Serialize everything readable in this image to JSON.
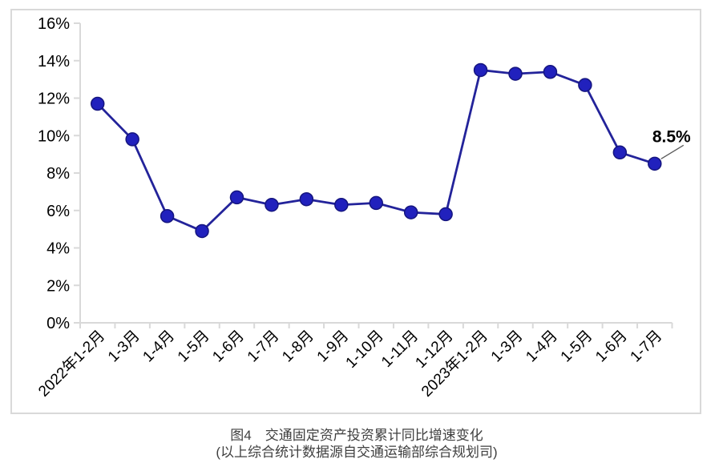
{
  "figure": {
    "caption_line1": "图4　交通固定资产投资累计同比增速变化",
    "caption_line2": "(以上综合统计数据源自交通运输部综合规划司)"
  },
  "chart_data": {
    "type": "line",
    "title": "交通固定资产投资累计同比增速变化",
    "categories": [
      "2022年1-2月",
      "1-3月",
      "1-4月",
      "1-5月",
      "1-6月",
      "1-7月",
      "1-8月",
      "1-9月",
      "1-10月",
      "1-11月",
      "1-12月",
      "2023年1-2月",
      "1-3月",
      "1-4月",
      "1-5月",
      "1-6月",
      "1-7月"
    ],
    "series": [
      {
        "name": "交通固定资产投资累计同比增速",
        "values": [
          11.7,
          9.8,
          5.7,
          4.9,
          6.7,
          6.3,
          6.6,
          6.3,
          6.4,
          5.9,
          5.8,
          13.5,
          13.3,
          13.4,
          12.7,
          9.1,
          8.5
        ]
      }
    ],
    "y_ticks": [
      "0%",
      "2%",
      "4%",
      "6%",
      "8%",
      "10%",
      "12%",
      "14%",
      "16%"
    ],
    "ylim": [
      0,
      16
    ],
    "y_tick_step": 2,
    "xlabel": "",
    "ylabel": "",
    "grid": false,
    "legend": "none",
    "x_label_rotation": 45,
    "annotation": {
      "text": "8.5%",
      "point_index": 16
    },
    "colors": {
      "line": "#23239a",
      "marker_fill": "#2121bd",
      "marker_stroke": "#15157f",
      "axis": "#d9d9d9",
      "label_text": "#000000",
      "annotation_text": "#000000",
      "leader_line": "#595959"
    }
  }
}
